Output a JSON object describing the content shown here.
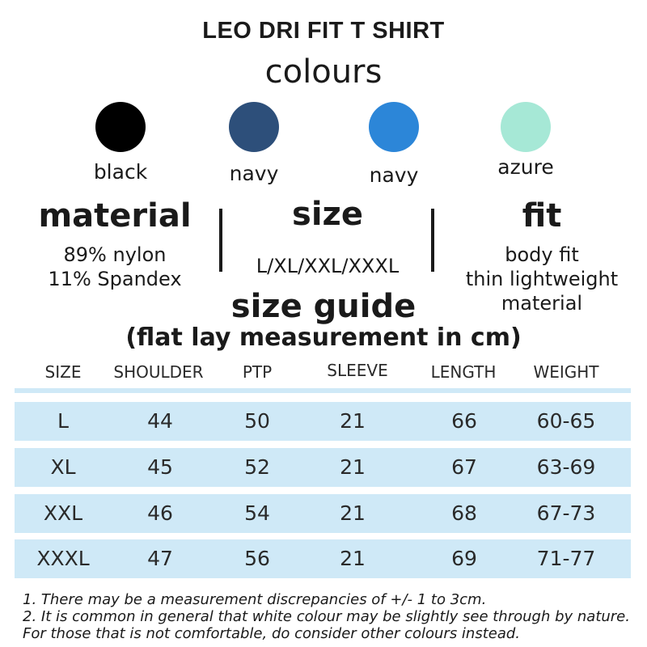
{
  "title": "LEO DRI FIT T SHIRT",
  "colours": {
    "heading": "colours",
    "items": [
      {
        "label": "black",
        "color": "#000000"
      },
      {
        "label": "navy",
        "color": "#2d4f7a"
      },
      {
        "label": "navy",
        "color": "#2c86d8"
      },
      {
        "label": "azure",
        "color": "#a6e8d6"
      }
    ]
  },
  "material": {
    "heading": "material",
    "lines": [
      "89% nylon",
      "11% Spandex"
    ]
  },
  "size": {
    "heading": "size",
    "value": "L/XL/XXL/XXXL"
  },
  "fit": {
    "heading": "fit",
    "lines": [
      "body fit",
      "thin lightweight",
      "material"
    ]
  },
  "size_guide": {
    "heading": "size guide",
    "subheading": "(flat lay measurement in cm)",
    "columns": [
      "SIZE",
      "SHOULDER",
      "PTP",
      "SLEEVE",
      "LENGTH",
      "WEIGHT"
    ],
    "rows": [
      [
        "L",
        "44",
        "50",
        "21",
        "66",
        "60-65"
      ],
      [
        "XL",
        "45",
        "52",
        "21",
        "67",
        "63-69"
      ],
      [
        "XXL",
        "46",
        "54",
        "21",
        "68",
        "67-73"
      ],
      [
        "XXXL",
        "47",
        "56",
        "21",
        "69",
        "71-77"
      ]
    ],
    "row_color": "#cfe9f7"
  },
  "notes": [
    "1.  There may be a measurement discrepancies of +/- 1 to 3cm.",
    "2. It is common in general that white colour may be slightly see through by nature. For those that is not comfortable, do consider other colours instead."
  ]
}
